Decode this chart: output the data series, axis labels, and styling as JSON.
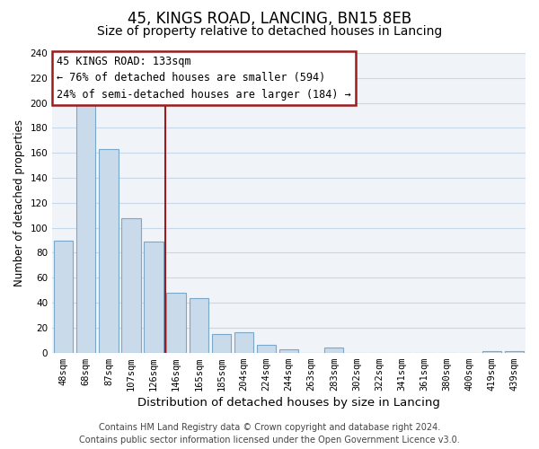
{
  "title": "45, KINGS ROAD, LANCING, BN15 8EB",
  "subtitle": "Size of property relative to detached houses in Lancing",
  "xlabel": "Distribution of detached houses by size in Lancing",
  "ylabel": "Number of detached properties",
  "categories": [
    "48sqm",
    "68sqm",
    "87sqm",
    "107sqm",
    "126sqm",
    "146sqm",
    "165sqm",
    "185sqm",
    "204sqm",
    "224sqm",
    "244sqm",
    "263sqm",
    "283sqm",
    "302sqm",
    "322sqm",
    "341sqm",
    "361sqm",
    "380sqm",
    "400sqm",
    "419sqm",
    "439sqm"
  ],
  "values": [
    90,
    200,
    163,
    108,
    89,
    48,
    44,
    15,
    16,
    6,
    3,
    0,
    4,
    0,
    0,
    0,
    0,
    0,
    0,
    1,
    1
  ],
  "bar_color": "#c9daea",
  "bar_edge_color": "#7ba8c8",
  "ylim": [
    0,
    240
  ],
  "yticks": [
    0,
    20,
    40,
    60,
    80,
    100,
    120,
    140,
    160,
    180,
    200,
    220,
    240
  ],
  "vline_x": 4.5,
  "vline_color": "#9b1c1c",
  "annotation_line1": "45 KINGS ROAD: 133sqm",
  "annotation_line2": "← 76% of detached houses are smaller (594)",
  "annotation_line3": "24% of semi-detached houses are larger (184) →",
  "footer_line1": "Contains HM Land Registry data © Crown copyright and database right 2024.",
  "footer_line2": "Contains public sector information licensed under the Open Government Licence v3.0.",
  "title_fontsize": 12,
  "subtitle_fontsize": 10,
  "xlabel_fontsize": 9.5,
  "ylabel_fontsize": 8.5,
  "tick_fontsize": 7.5,
  "annotation_fontsize": 8.5,
  "footer_fontsize": 7,
  "background_color": "#ffffff",
  "plot_bg_color": "#f0f4f8",
  "grid_color": "#c8d8e8"
}
